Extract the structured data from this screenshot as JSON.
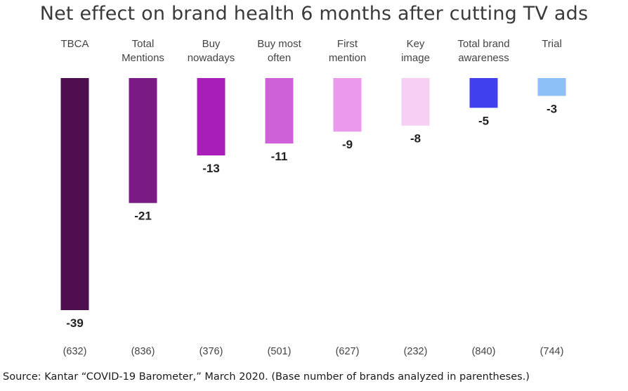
{
  "chart_data": {
    "type": "bar",
    "title": "Net effect on brand health 6 months after cutting TV ads",
    "categories": [
      [
        "TBCA"
      ],
      [
        "Total",
        "Mentions"
      ],
      [
        "Buy",
        "nowadays"
      ],
      [
        "Buy most",
        "often"
      ],
      [
        "First",
        "mention"
      ],
      [
        "Key",
        "image"
      ],
      [
        "Total brand",
        "awareness"
      ],
      [
        "Trial"
      ]
    ],
    "values": [
      -39,
      -21,
      -13,
      -11,
      -9,
      -8,
      -5,
      -3
    ],
    "value_labels": [
      "-39",
      "-21",
      "-13",
      "-11",
      "-9",
      "-8",
      "-5",
      "-3"
    ],
    "base_counts": [
      "(632)",
      "(836)",
      "(376)",
      "(501)",
      "(627)",
      "(232)",
      "(840)",
      "(744)"
    ],
    "colors": [
      "#4d0d4f",
      "#7a1a85",
      "#a91db8",
      "#d060d8",
      "#eb9aeb",
      "#f6cff4",
      "#4040ee",
      "#8ec0f8"
    ],
    "ylim": [
      -39,
      0
    ],
    "grid": false,
    "legend": "none"
  },
  "footer": {
    "source": "Source: Kantar “COVID-19 Barometer,” March 2020. (Base number of brands analyzed in parentheses.)"
  }
}
